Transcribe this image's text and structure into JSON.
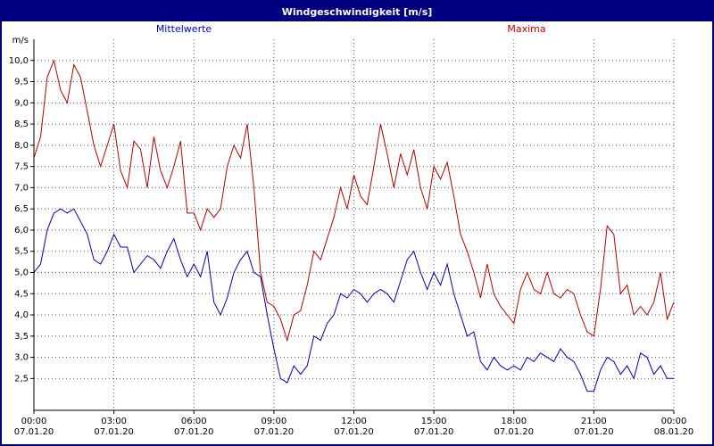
{
  "window": {
    "title": "Windgeschwindigkeit [m/s]"
  },
  "legend": {
    "mean": "Mittelwerte",
    "max": "Maxima"
  },
  "colors": {
    "titlebar_bg": "#000080",
    "border": "#000080",
    "grid": "#555555",
    "axis": "#000000",
    "mean_label": "#0000c0",
    "max_label": "#c00000",
    "mean_line": "#0000b0",
    "max_line": "#b00000"
  },
  "chart_data": {
    "type": "line",
    "title": "Windgeschwindigkeit [m/s]",
    "ylabel": "m/s",
    "xlabel": "",
    "ylim": [
      1.75,
      10.5
    ],
    "xlim_hours": [
      0,
      24
    ],
    "grid": true,
    "legend_position": "top",
    "y_ticks": [
      2.5,
      3.0,
      3.5,
      4.0,
      4.5,
      5.0,
      5.5,
      6.0,
      6.5,
      7.0,
      7.5,
      8.0,
      8.5,
      9.0,
      9.5,
      10.0
    ],
    "x_step_hours": 0.25,
    "x_ticks": [
      {
        "hour": 0,
        "time": "00:00",
        "date": "07.01.20"
      },
      {
        "hour": 3,
        "time": "03:00",
        "date": "07.01.20"
      },
      {
        "hour": 6,
        "time": "06:00",
        "date": "07.01.20"
      },
      {
        "hour": 9,
        "time": "09:00",
        "date": "07.01.20"
      },
      {
        "hour": 12,
        "time": "12:00",
        "date": "07.01.20"
      },
      {
        "hour": 15,
        "time": "15:00",
        "date": "07.01.20"
      },
      {
        "hour": 18,
        "time": "18:00",
        "date": "07.01.20"
      },
      {
        "hour": 21,
        "time": "21:00",
        "date": "07.01.20"
      },
      {
        "hour": 24,
        "time": "00:00",
        "date": "08.01.20"
      }
    ],
    "series": [
      {
        "name": "Mittelwerte",
        "color": "#0000b0",
        "values": [
          5.0,
          5.2,
          6.0,
          6.4,
          6.5,
          6.4,
          6.5,
          6.2,
          5.9,
          5.3,
          5.2,
          5.5,
          5.9,
          5.6,
          5.6,
          5.0,
          5.2,
          5.4,
          5.3,
          5.1,
          5.5,
          5.8,
          5.3,
          4.9,
          5.2,
          4.9,
          5.5,
          4.3,
          4.0,
          4.4,
          5.0,
          5.3,
          5.5,
          5.0,
          4.9,
          4.0,
          3.2,
          2.5,
          2.4,
          2.8,
          2.6,
          2.8,
          3.5,
          3.4,
          3.8,
          4.0,
          4.5,
          4.4,
          4.6,
          4.5,
          4.3,
          4.5,
          4.6,
          4.5,
          4.3,
          4.8,
          5.3,
          5.5,
          5.0,
          4.6,
          5.0,
          4.7,
          5.2,
          4.5,
          4.0,
          3.5,
          3.6,
          2.9,
          2.7,
          3.0,
          2.8,
          2.7,
          2.8,
          2.7,
          3.0,
          2.9,
          3.1,
          3.0,
          2.9,
          3.2,
          3.0,
          2.9,
          2.6,
          2.2,
          2.2,
          2.7,
          3.0,
          2.9,
          2.6,
          2.8,
          2.5,
          3.1,
          3.0,
          2.6,
          2.8,
          2.5,
          2.5
        ]
      },
      {
        "name": "Maxima",
        "color": "#b00000",
        "values": [
          7.7,
          8.2,
          9.6,
          10.0,
          9.3,
          9.0,
          9.9,
          9.6,
          8.8,
          8.0,
          7.5,
          8.0,
          8.5,
          7.4,
          7.0,
          8.1,
          7.9,
          7.0,
          8.2,
          7.4,
          7.0,
          7.5,
          8.1,
          6.4,
          6.4,
          6.0,
          6.5,
          6.3,
          6.5,
          7.5,
          8.0,
          7.7,
          8.5,
          7.0,
          5.0,
          4.3,
          4.2,
          3.9,
          3.4,
          4.0,
          4.1,
          4.7,
          5.5,
          5.3,
          5.8,
          6.3,
          7.0,
          6.5,
          7.3,
          6.8,
          6.6,
          7.5,
          8.5,
          7.8,
          7.0,
          7.8,
          7.3,
          7.9,
          7.0,
          6.5,
          7.5,
          7.2,
          7.6,
          6.8,
          5.9,
          5.5,
          5.0,
          4.4,
          5.2,
          4.5,
          4.2,
          4.0,
          3.8,
          4.6,
          5.0,
          4.6,
          4.5,
          5.0,
          4.5,
          4.4,
          4.6,
          4.5,
          4.0,
          3.6,
          3.5,
          4.6,
          6.1,
          5.9,
          4.5,
          4.7,
          4.0,
          4.2,
          4.0,
          4.3,
          5.0,
          3.9,
          4.3
        ]
      }
    ]
  }
}
